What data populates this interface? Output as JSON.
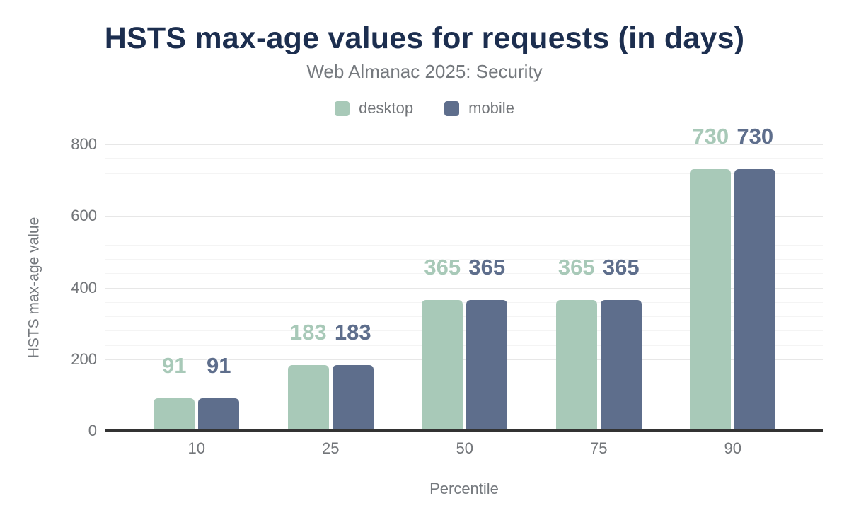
{
  "chart_data": {
    "type": "bar",
    "title": "HSTS max-age values for requests (in days)",
    "subtitle": "Web Almanac 2025: Security",
    "xlabel": "Percentile",
    "ylabel": "HSTS max-age value",
    "categories": [
      "10",
      "25",
      "50",
      "75",
      "90"
    ],
    "series": [
      {
        "name": "desktop",
        "color": "#a8c9b8",
        "values": [
          91,
          183,
          365,
          365,
          730
        ]
      },
      {
        "name": "mobile",
        "color": "#5e6e8c",
        "values": [
          91,
          183,
          365,
          365,
          730
        ]
      }
    ],
    "ylim": [
      0,
      800
    ],
    "yticks": [
      0,
      200,
      400,
      600,
      800
    ],
    "minor_tick_interval": 40,
    "major_tick_interval": 200,
    "grid": true,
    "legend_position": "top",
    "data_labels": true
  },
  "style": {
    "title_color": "#1c2e4f",
    "subtitle_color": "#75797e",
    "axis_text_color": "#73767a",
    "axis_line_color": "#333333",
    "major_grid_color": "#e7e7e7",
    "minor_grid_color": "#f4f4f4",
    "background_color": "#ffffff"
  }
}
